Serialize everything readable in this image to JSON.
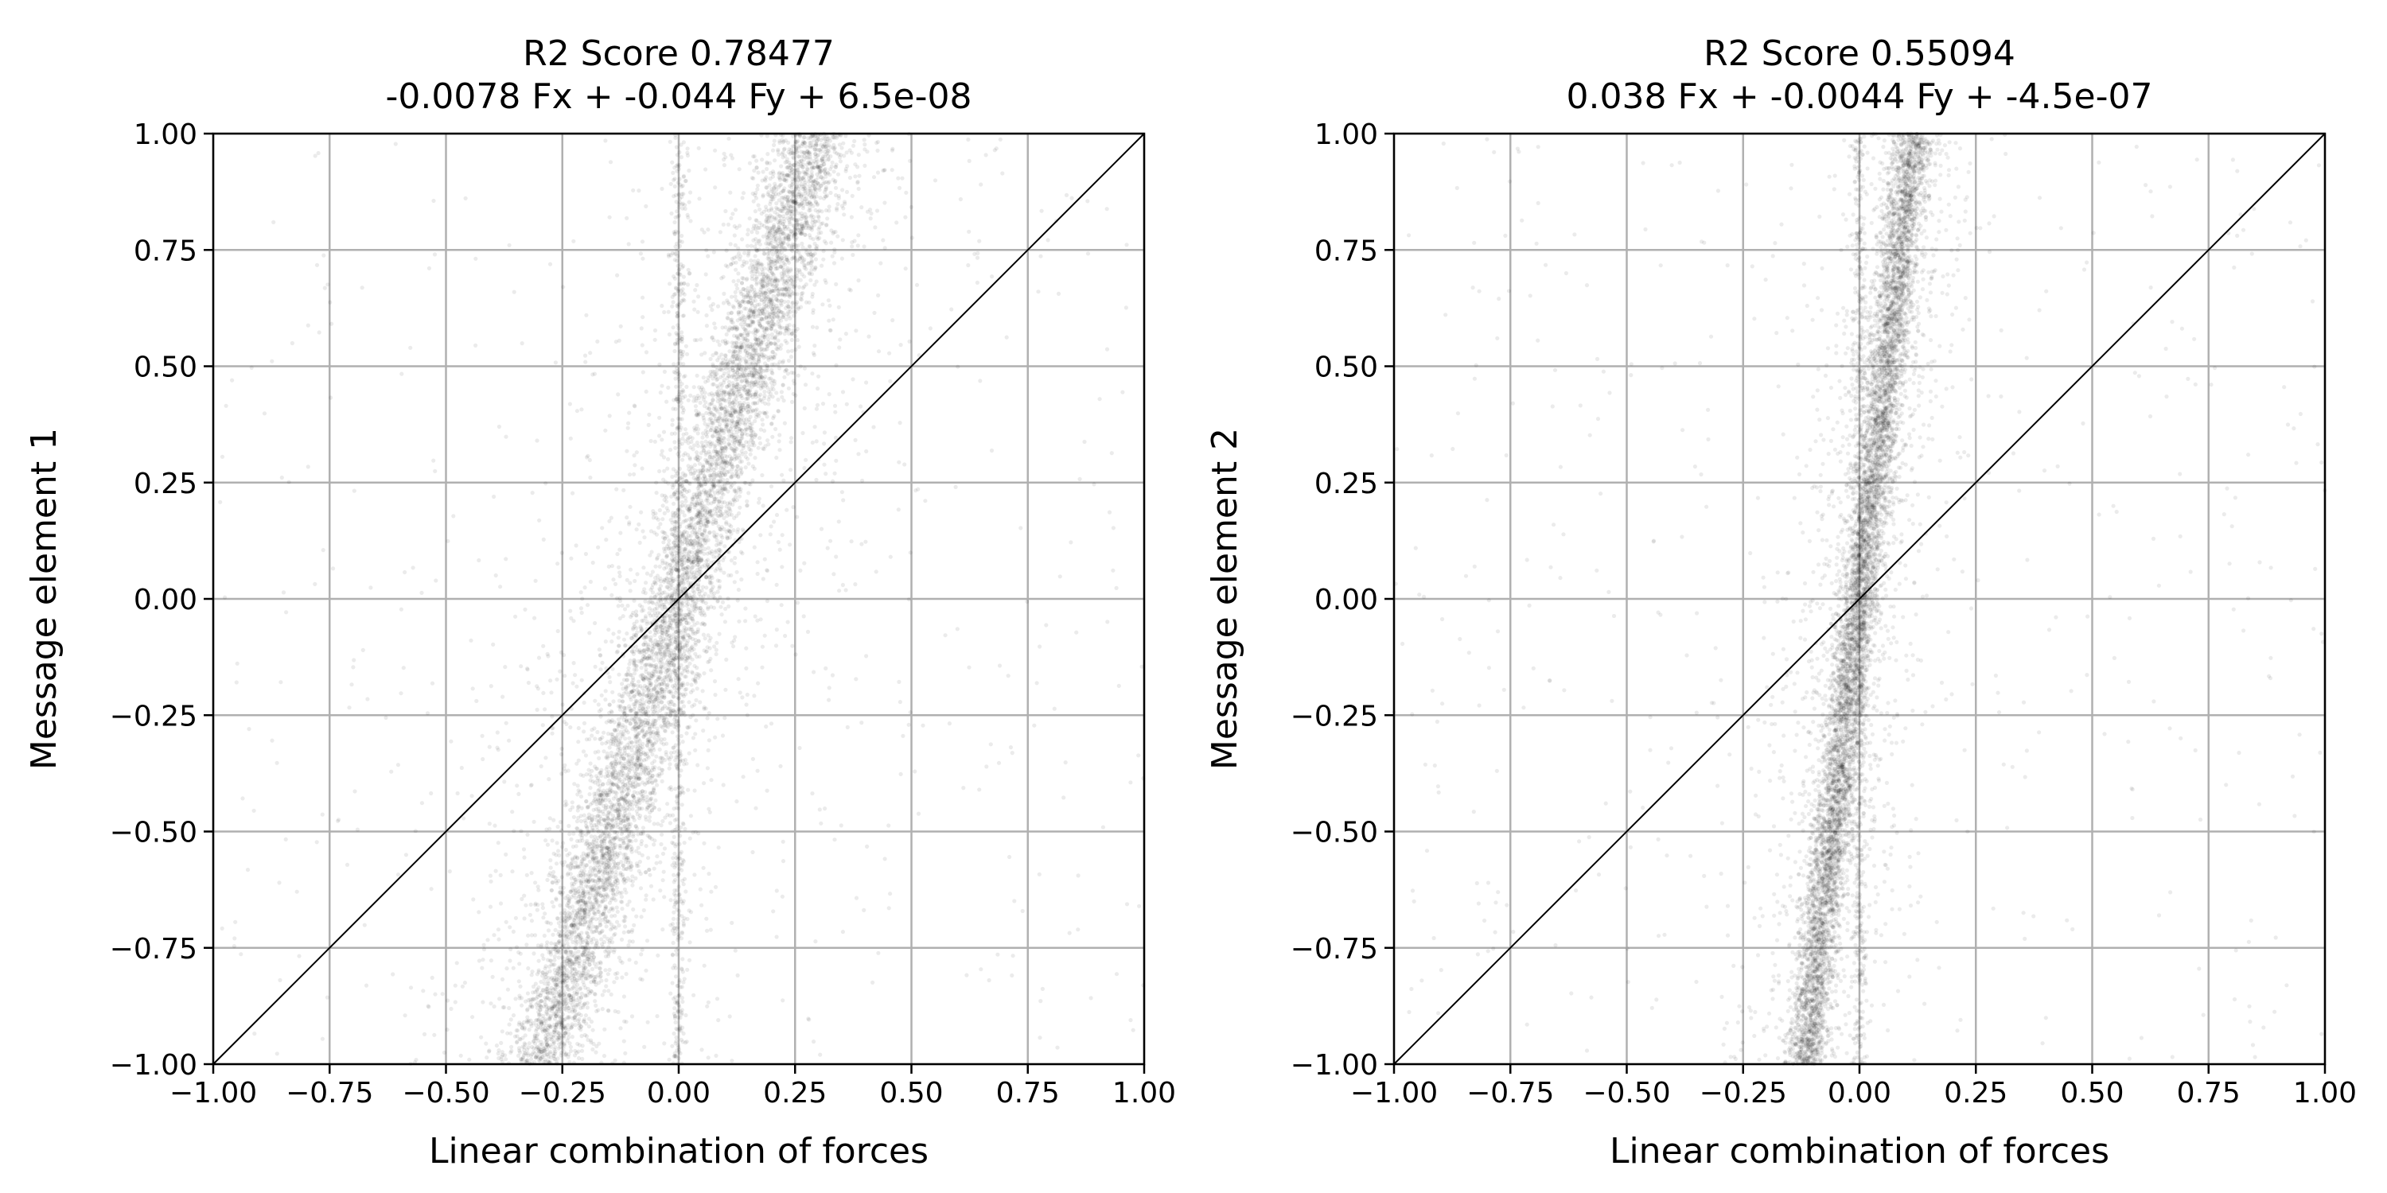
{
  "chart_data": [
    {
      "type": "scatter",
      "title": "R2 Score 0.78477",
      "subtitle": "-0.0078 Fx + -0.044 Fy + 6.5e-08",
      "xlabel": "Linear combination of forces",
      "ylabel": "Message element 1",
      "xlim": [
        -1.0,
        1.0
      ],
      "ylim": [
        -1.0,
        1.0
      ],
      "xticks": [
        "−1.00",
        "−0.75",
        "−0.50",
        "−0.25",
        "0.00",
        "0.25",
        "0.50",
        "0.75",
        "1.00"
      ],
      "yticks": [
        "−1.00",
        "−0.75",
        "−0.50",
        "−0.25",
        "0.00",
        "0.25",
        "0.50",
        "0.75",
        "1.00"
      ],
      "grid": true,
      "reference_line": "y = x",
      "point_color": "#000000",
      "point_alpha": 0.08,
      "fit_slope": 3.4,
      "fit_intercept": 0.0,
      "main_band_halfwidth": 0.07,
      "vertical_cluster_x": 0.0,
      "n_points": 9000
    },
    {
      "type": "scatter",
      "title": "R2 Score 0.55094",
      "subtitle": "0.038 Fx + -0.0044 Fy + -4.5e-07",
      "xlabel": "Linear combination of forces",
      "ylabel": "Message element 2",
      "xlim": [
        -1.0,
        1.0
      ],
      "ylim": [
        -1.0,
        1.0
      ],
      "xticks": [
        "−1.00",
        "−0.75",
        "−0.50",
        "−0.25",
        "0.00",
        "0.25",
        "0.50",
        "0.75",
        "1.00"
      ],
      "yticks": [
        "−1.00",
        "−0.75",
        "−0.50",
        "−0.25",
        "0.00",
        "0.25",
        "0.50",
        "0.75",
        "1.00"
      ],
      "grid": true,
      "reference_line": "y = x",
      "point_color": "#000000",
      "point_alpha": 0.08,
      "fit_slope": 8.5,
      "fit_intercept": 0.0,
      "main_band_halfwidth": 0.035,
      "vertical_cluster_x": 0.0,
      "n_points": 9000
    }
  ]
}
